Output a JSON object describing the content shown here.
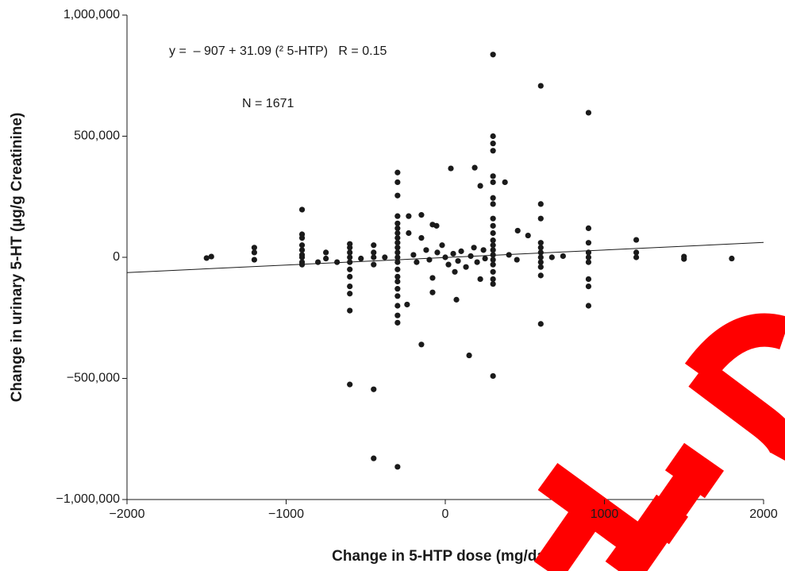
{
  "chart_data": {
    "type": "scatter",
    "x_label": "Change in 5-HTP dose (mg/day)",
    "y_label": "Change in urinary 5-HT (µg/g Creatinine)",
    "annotations": [
      "y =  – 907 + 31.09 (² 5-HTP)   R = 0.15",
      "N = 1671"
    ],
    "trend_line": {
      "intercept": -907,
      "slope": 31.09
    },
    "color": "#1a1a1a",
    "xlim": [
      -2000,
      2000
    ],
    "ylim": [
      -1000000,
      1000000
    ],
    "xticks": [
      {
        "value": -2000,
        "label": "−2000"
      },
      {
        "value": -1000,
        "label": "−1000"
      },
      0,
      1000,
      2000
    ],
    "yticks": [
      {
        "value": -1000000,
        "label": "−1,000,000"
      },
      {
        "value": -500000,
        "label": "−500,000"
      },
      0,
      {
        "value": 500000,
        "label": "500,000"
      },
      {
        "value": 1000000,
        "label": "1,000,000"
      }
    ],
    "x": [
      -1500,
      -1470,
      -1200,
      -1200,
      -1200,
      -900,
      -900,
      -900,
      -900,
      -900,
      -900,
      -900,
      -900,
      -900,
      -800,
      -750,
      -750,
      -680,
      -600,
      -600,
      -600,
      -600,
      -600,
      -600,
      -600,
      -600,
      -600,
      -600,
      -600,
      -530,
      -450,
      -450,
      -450,
      -450,
      -450,
      -450,
      -380,
      -300,
      -300,
      -300,
      -300,
      -300,
      -300,
      -300,
      -300,
      -300,
      -300,
      -300,
      -300,
      -300,
      -300,
      -300,
      -300,
      -300,
      -300,
      -300,
      -300,
      -300,
      -300,
      -230,
      -230,
      -240,
      -150,
      -150,
      -150,
      -80,
      -80,
      -80,
      -55,
      -200,
      -180,
      -120,
      -100,
      -50,
      0,
      20,
      50,
      80,
      100,
      130,
      160,
      200,
      240,
      -20,
      60,
      180,
      250,
      35,
      70,
      185,
      220,
      220,
      150,
      300,
      300,
      300,
      300,
      300,
      300,
      300,
      300,
      300,
      300,
      300,
      300,
      300,
      300,
      300,
      300,
      300,
      300,
      300,
      300,
      300,
      375,
      455,
      520,
      600,
      600,
      600,
      600,
      600,
      600,
      600,
      600,
      600,
      600,
      600,
      670,
      740,
      400,
      450,
      900,
      900,
      900,
      900,
      900,
      900,
      900,
      900,
      900,
      1200,
      1200,
      1200,
      1500,
      1500,
      1800
    ],
    "values": [
      -3000,
      3000,
      40000,
      20000,
      -10000,
      197000,
      95000,
      80000,
      50000,
      30000,
      10000,
      0,
      -20000,
      -30000,
      -20000,
      20000,
      -5000,
      -20000,
      55000,
      40000,
      20000,
      0,
      -20000,
      -50000,
      -80000,
      -120000,
      -150000,
      -220000,
      -525000,
      -5000,
      50000,
      20000,
      0,
      -30000,
      -545000,
      -830000,
      0,
      350000,
      310000,
      255000,
      170000,
      140000,
      120000,
      100000,
      80000,
      60000,
      40000,
      20000,
      0,
      -20000,
      -50000,
      -80000,
      -100000,
      -130000,
      -160000,
      -200000,
      -240000,
      -270000,
      -865000,
      170000,
      100000,
      -195000,
      175000,
      80000,
      -360000,
      -85000,
      -145000,
      135000,
      130000,
      10000,
      -20000,
      30000,
      -10000,
      20000,
      0,
      -30000,
      15000,
      -15000,
      25000,
      -40000,
      5000,
      -20000,
      30000,
      50000,
      -60000,
      40000,
      -5000,
      367000,
      -175000,
      370000,
      295000,
      -90000,
      -405000,
      837000,
      500000,
      470000,
      440000,
      335000,
      310000,
      245000,
      220000,
      160000,
      130000,
      100000,
      70000,
      50000,
      30000,
      10000,
      -10000,
      -30000,
      -60000,
      -90000,
      -110000,
      -490000,
      310000,
      110000,
      90000,
      708000,
      220000,
      160000,
      60000,
      40000,
      20000,
      0,
      -20000,
      -40000,
      -75000,
      -275000,
      0,
      5000,
      10000,
      -10000,
      597000,
      120000,
      60000,
      20000,
      0,
      -20000,
      -90000,
      -120000,
      -200000,
      72000,
      20000,
      0,
      3000,
      -7000,
      -5000
    ]
  }
}
